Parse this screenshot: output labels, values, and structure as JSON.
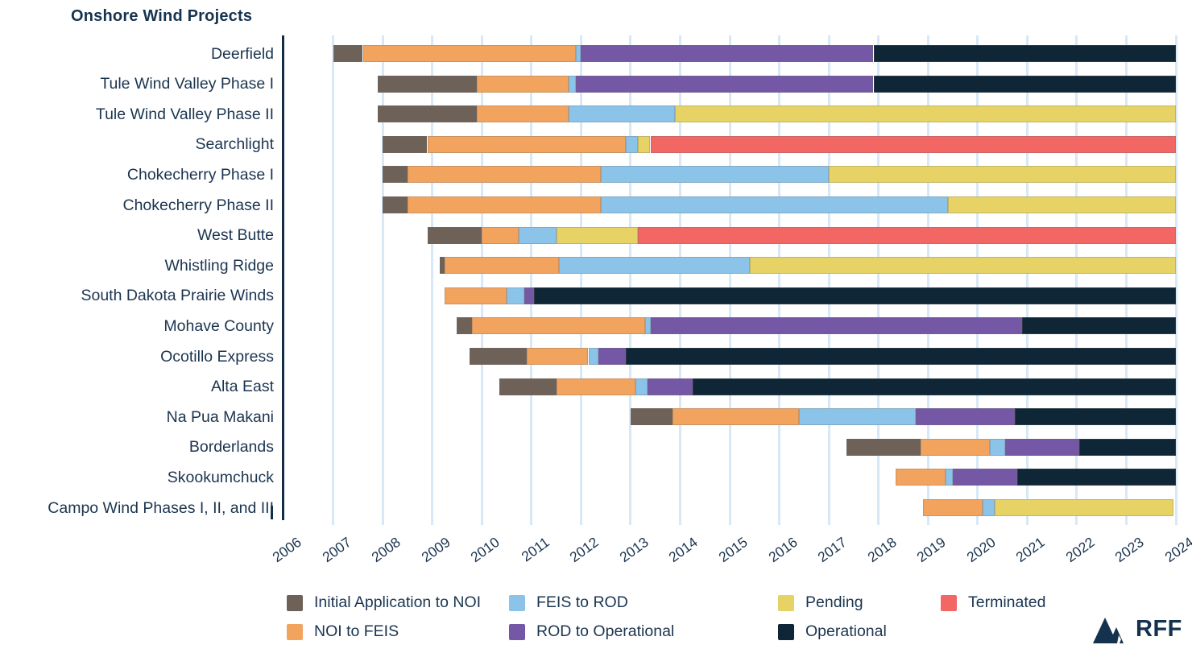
{
  "title": "Onshore Wind Projects",
  "branding": {
    "logo_text": "RFF"
  },
  "chart_data": {
    "type": "bar",
    "subtype": "horizontal-stacked-gantt",
    "title": "Onshore Wind Projects",
    "xlabel": "",
    "ylabel": "",
    "x_axis": {
      "min": 2006,
      "max": 2024,
      "ticks": [
        2006,
        2007,
        2008,
        2009,
        2010,
        2011,
        2012,
        2013,
        2014,
        2015,
        2016,
        2017,
        2018,
        2019,
        2020,
        2021,
        2022,
        2023,
        2024
      ]
    },
    "grid": "vertical-light-blue",
    "phases": {
      "initial": {
        "label": "Initial Application to NOI",
        "color": "#6e6158"
      },
      "noi_feis": {
        "label": "NOI to FEIS",
        "color": "#f2a45f"
      },
      "feis_rod": {
        "label": "FEIS to ROD",
        "color": "#8cc3e9"
      },
      "rod_op": {
        "label": "ROD to Operational",
        "color": "#7458a5"
      },
      "pending": {
        "label": "Pending",
        "color": "#e7d365"
      },
      "operational": {
        "label": "Operational",
        "color": "#0e2636"
      },
      "terminated": {
        "label": "Terminated",
        "color": "#f26663"
      }
    },
    "legend_rows": [
      [
        "initial",
        "feis_rod",
        "pending",
        "terminated"
      ],
      [
        "noi_feis",
        "rod_op",
        "operational"
      ]
    ],
    "projects": [
      {
        "name": "Deerfield",
        "segments": [
          {
            "phase": "initial",
            "start": 2007.0,
            "end": 2007.6
          },
          {
            "phase": "noi_feis",
            "start": 2007.6,
            "end": 2011.9
          },
          {
            "phase": "feis_rod",
            "start": 2011.9,
            "end": 2012.0
          },
          {
            "phase": "rod_op",
            "start": 2012.0,
            "end": 2017.9
          },
          {
            "phase": "operational",
            "start": 2017.9,
            "end": 2024.0
          }
        ]
      },
      {
        "name": "Tule Wind Valley Phase I",
        "segments": [
          {
            "phase": "initial",
            "start": 2007.9,
            "end": 2009.9
          },
          {
            "phase": "noi_feis",
            "start": 2009.9,
            "end": 2011.75
          },
          {
            "phase": "feis_rod",
            "start": 2011.75,
            "end": 2011.9
          },
          {
            "phase": "rod_op",
            "start": 2011.9,
            "end": 2017.9
          },
          {
            "phase": "operational",
            "start": 2017.9,
            "end": 2024.0
          }
        ]
      },
      {
        "name": "Tule Wind Valley Phase II",
        "segments": [
          {
            "phase": "initial",
            "start": 2007.9,
            "end": 2009.9
          },
          {
            "phase": "noi_feis",
            "start": 2009.9,
            "end": 2011.75
          },
          {
            "phase": "feis_rod",
            "start": 2011.75,
            "end": 2013.9
          },
          {
            "phase": "pending",
            "start": 2013.9,
            "end": 2024.0
          }
        ]
      },
      {
        "name": "Searchlight",
        "segments": [
          {
            "phase": "initial",
            "start": 2008.0,
            "end": 2008.9
          },
          {
            "phase": "noi_feis",
            "start": 2008.9,
            "end": 2012.9
          },
          {
            "phase": "feis_rod",
            "start": 2012.9,
            "end": 2013.15
          },
          {
            "phase": "pending",
            "start": 2013.15,
            "end": 2013.4
          },
          {
            "phase": "terminated",
            "start": 2013.4,
            "end": 2024.0
          }
        ]
      },
      {
        "name": "Chokecherry Phase I",
        "segments": [
          {
            "phase": "initial",
            "start": 2008.0,
            "end": 2008.5
          },
          {
            "phase": "noi_feis",
            "start": 2008.5,
            "end": 2012.4
          },
          {
            "phase": "feis_rod",
            "start": 2012.4,
            "end": 2017.0
          },
          {
            "phase": "pending",
            "start": 2017.0,
            "end": 2024.0
          }
        ]
      },
      {
        "name": "Chokecherry Phase II",
        "segments": [
          {
            "phase": "initial",
            "start": 2008.0,
            "end": 2008.5
          },
          {
            "phase": "noi_feis",
            "start": 2008.5,
            "end": 2012.4
          },
          {
            "phase": "feis_rod",
            "start": 2012.4,
            "end": 2019.4
          },
          {
            "phase": "pending",
            "start": 2019.4,
            "end": 2024.0
          }
        ]
      },
      {
        "name": "West Butte",
        "segments": [
          {
            "phase": "initial",
            "start": 2008.9,
            "end": 2010.0
          },
          {
            "phase": "noi_feis",
            "start": 2010.0,
            "end": 2010.75
          },
          {
            "phase": "feis_rod",
            "start": 2010.75,
            "end": 2011.5
          },
          {
            "phase": "pending",
            "start": 2011.5,
            "end": 2013.15
          },
          {
            "phase": "terminated",
            "start": 2013.15,
            "end": 2024.0
          }
        ]
      },
      {
        "name": "Whistling Ridge",
        "segments": [
          {
            "phase": "initial",
            "start": 2009.15,
            "end": 2009.25
          },
          {
            "phase": "noi_feis",
            "start": 2009.25,
            "end": 2011.55
          },
          {
            "phase": "feis_rod",
            "start": 2011.55,
            "end": 2015.4
          },
          {
            "phase": "pending",
            "start": 2015.4,
            "end": 2024.0
          }
        ]
      },
      {
        "name": "South Dakota Prairie Winds",
        "segments": [
          {
            "phase": "noi_feis",
            "start": 2009.25,
            "end": 2010.5
          },
          {
            "phase": "feis_rod",
            "start": 2010.5,
            "end": 2010.85
          },
          {
            "phase": "rod_op",
            "start": 2010.85,
            "end": 2011.05
          },
          {
            "phase": "operational",
            "start": 2011.05,
            "end": 2024.0
          }
        ]
      },
      {
        "name": "Mohave County",
        "segments": [
          {
            "phase": "initial",
            "start": 2009.5,
            "end": 2009.8
          },
          {
            "phase": "noi_feis",
            "start": 2009.8,
            "end": 2013.3
          },
          {
            "phase": "feis_rod",
            "start": 2013.3,
            "end": 2013.4
          },
          {
            "phase": "rod_op",
            "start": 2013.4,
            "end": 2020.9
          },
          {
            "phase": "operational",
            "start": 2020.9,
            "end": 2024.0
          }
        ]
      },
      {
        "name": "Ocotillo Express",
        "segments": [
          {
            "phase": "initial",
            "start": 2009.75,
            "end": 2010.9
          },
          {
            "phase": "noi_feis",
            "start": 2010.9,
            "end": 2012.15
          },
          {
            "phase": "feis_rod",
            "start": 2012.15,
            "end": 2012.35
          },
          {
            "phase": "rod_op",
            "start": 2012.35,
            "end": 2012.9
          },
          {
            "phase": "operational",
            "start": 2012.9,
            "end": 2024.0
          }
        ]
      },
      {
        "name": "Alta East",
        "segments": [
          {
            "phase": "initial",
            "start": 2010.35,
            "end": 2011.5
          },
          {
            "phase": "noi_feis",
            "start": 2011.5,
            "end": 2013.1
          },
          {
            "phase": "feis_rod",
            "start": 2013.1,
            "end": 2013.35
          },
          {
            "phase": "rod_op",
            "start": 2013.35,
            "end": 2014.25
          },
          {
            "phase": "operational",
            "start": 2014.25,
            "end": 2024.0
          }
        ]
      },
      {
        "name": "Na Pua Makani",
        "segments": [
          {
            "phase": "initial",
            "start": 2013.0,
            "end": 2013.85
          },
          {
            "phase": "noi_feis",
            "start": 2013.85,
            "end": 2016.4
          },
          {
            "phase": "feis_rod",
            "start": 2016.4,
            "end": 2018.75
          },
          {
            "phase": "rod_op",
            "start": 2018.75,
            "end": 2020.75
          },
          {
            "phase": "operational",
            "start": 2020.75,
            "end": 2024.0
          }
        ]
      },
      {
        "name": "Borderlands",
        "segments": [
          {
            "phase": "initial",
            "start": 2017.35,
            "end": 2018.85
          },
          {
            "phase": "noi_feis",
            "start": 2018.85,
            "end": 2020.25
          },
          {
            "phase": "feis_rod",
            "start": 2020.25,
            "end": 2020.55
          },
          {
            "phase": "rod_op",
            "start": 2020.55,
            "end": 2022.05
          },
          {
            "phase": "operational",
            "start": 2022.05,
            "end": 2024.0
          }
        ]
      },
      {
        "name": "Skookumchuck",
        "segments": [
          {
            "phase": "noi_feis",
            "start": 2018.35,
            "end": 2019.35
          },
          {
            "phase": "feis_rod",
            "start": 2019.35,
            "end": 2019.5
          },
          {
            "phase": "rod_op",
            "start": 2019.5,
            "end": 2020.8
          },
          {
            "phase": "operational",
            "start": 2020.8,
            "end": 2024.0
          }
        ]
      },
      {
        "name": "Campo Wind Phases I, II, and III",
        "segments": [
          {
            "phase": "noi_feis",
            "start": 2018.9,
            "end": 2020.1
          },
          {
            "phase": "feis_rod",
            "start": 2020.1,
            "end": 2020.35
          },
          {
            "phase": "pending",
            "start": 2020.35,
            "end": 2023.95
          }
        ]
      }
    ]
  }
}
